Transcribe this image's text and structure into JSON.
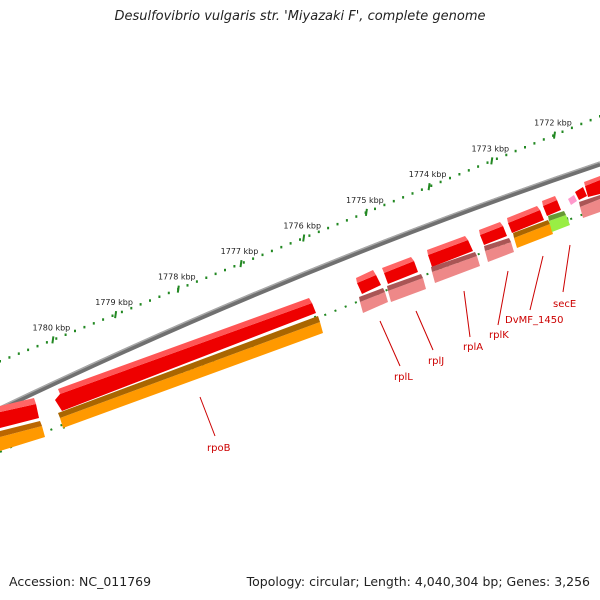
{
  "title": "Desulfovibrio vulgaris str. 'Miyazaki F', complete genome",
  "footer": {
    "accession": "Accession: NC_011769",
    "stats": "Topology: circular; Length: 4,040,304 bp; Genes: 3,256"
  },
  "colors": {
    "backbone": "#888888",
    "cds_forward": "#ee0000",
    "cds_light": "#ee8888",
    "orange": "#ff9900",
    "green": "#99ee44",
    "pink": "#ff99cc",
    "tick": "#228822",
    "label": "#cc0000"
  },
  "ruler": [
    {
      "label": "1772 kbp"
    },
    {
      "label": "1773 kbp"
    },
    {
      "label": "1774 kbp"
    },
    {
      "label": "1775 kbp"
    },
    {
      "label": "1776 kbp"
    },
    {
      "label": "1777 kbp"
    },
    {
      "label": "1778 kbp"
    },
    {
      "label": "1779 kbp"
    },
    {
      "label": "1780 kbp"
    }
  ],
  "gene_labels": [
    {
      "name": "rpoB"
    },
    {
      "name": "rplL"
    },
    {
      "name": "rplJ"
    },
    {
      "name": "rplA"
    },
    {
      "name": "rplK"
    },
    {
      "name": "DvMF_1450"
    },
    {
      "name": "secE"
    }
  ]
}
